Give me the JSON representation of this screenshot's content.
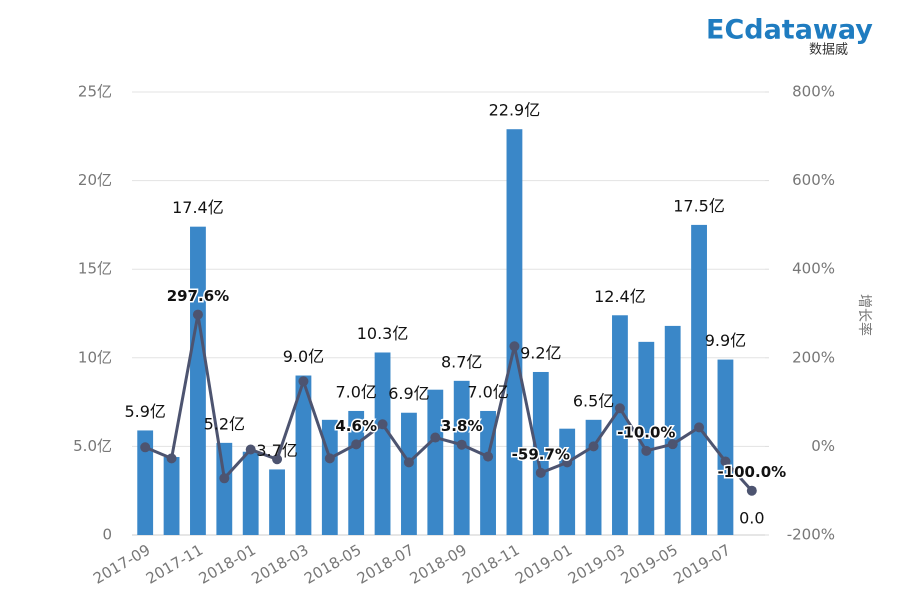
{
  "chart_data": {
    "type": "bar_line",
    "logo": {
      "brand": "ECdataway",
      "sub": "数据威"
    },
    "y2_label": "增长率",
    "categories": [
      "2017-09",
      null,
      "2017-11",
      null,
      "2018-01",
      null,
      "2018-03",
      null,
      "2018-05",
      null,
      "2018-07",
      null,
      "2018-09",
      null,
      "2018-11",
      null,
      "2019-01",
      null,
      "2019-03",
      null,
      "2019-05",
      null,
      "2019-07",
      null
    ],
    "series": [
      {
        "type": "bar",
        "color": "#3a87c8",
        "values": [
          5.9,
          4.4,
          17.4,
          5.2,
          4.7,
          3.7,
          9.0,
          6.5,
          7.0,
          10.3,
          6.9,
          8.2,
          8.7,
          7.0,
          22.9,
          9.2,
          6.0,
          6.5,
          12.4,
          10.9,
          11.8,
          17.5,
          9.9,
          0.0
        ],
        "value_labels": [
          "5.9亿",
          null,
          "17.4亿",
          "5.2亿",
          null,
          "3.7亿",
          "9.0亿",
          null,
          "7.0亿",
          "10.3亿",
          "6.9亿",
          null,
          "8.7亿",
          "7.0亿",
          "22.9亿",
          "9.2亿",
          null,
          "6.5亿",
          "12.4亿",
          null,
          null,
          "17.5亿",
          "9.9亿",
          "0.0"
        ]
      },
      {
        "type": "line",
        "axis": "y2",
        "color": "#4d5470",
        "values": [
          -2,
          -27,
          297.6,
          -72,
          -7,
          -29,
          147,
          -27,
          4.6,
          50,
          -36,
          20,
          3.8,
          -23,
          226,
          -59.7,
          -36,
          0,
          86,
          -10.0,
          5,
          43,
          -34,
          -100.0
        ],
        "value_labels": [
          null,
          null,
          "297.6%",
          null,
          null,
          null,
          null,
          null,
          "4.6%",
          null,
          null,
          null,
          "3.8%",
          null,
          null,
          "-59.7%",
          null,
          null,
          null,
          "-10.0%",
          null,
          null,
          null,
          "-100.0%"
        ]
      }
    ],
    "ylim": [
      0,
      25
    ],
    "yticks": [
      0,
      {
        "value": 5,
        "label": "5.0亿"
      },
      {
        "value": 10,
        "label": "10亿"
      },
      {
        "value": 15,
        "label": "15亿"
      },
      {
        "value": 20,
        "label": "20亿"
      },
      {
        "value": 25,
        "label": "25亿"
      }
    ],
    "y2lim": [
      -200,
      800
    ],
    "y2ticks": [
      {
        "value": -200,
        "label": "-200%"
      },
      {
        "value": 0,
        "label": "0%"
      },
      {
        "value": 200,
        "label": "200%"
      },
      {
        "value": 400,
        "label": "400%"
      },
      {
        "value": 600,
        "label": "600%"
      },
      {
        "value": 800,
        "label": "800%"
      }
    ],
    "grid": true
  }
}
